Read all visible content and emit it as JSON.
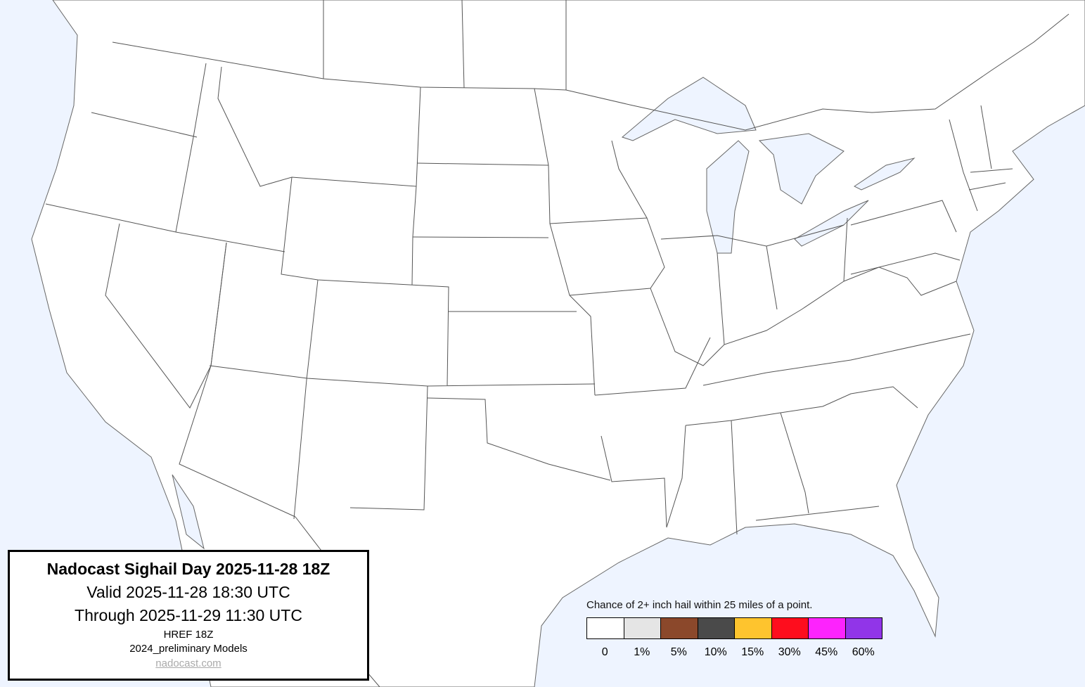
{
  "info": {
    "title": "Nadocast Sighail Day 2025-11-28 18Z",
    "valid": "Valid 2025-11-28 18:30 UTC",
    "through": "Through 2025-11-29 11:30 UTC",
    "model": "HREF 18Z",
    "models": "2024_preliminary Models",
    "link": "nadocast.com"
  },
  "legend": {
    "caption": "Chance of 2+ inch hail within 25 miles of a point.",
    "bins": [
      {
        "label": "0",
        "color": "#ffffff"
      },
      {
        "label": "1%",
        "color": "#e5e5e5"
      },
      {
        "label": "5%",
        "color": "#8b482b"
      },
      {
        "label": "10%",
        "color": "#4a4a4a"
      },
      {
        "label": "15%",
        "color": "#fec42e"
      },
      {
        "label": "30%",
        "color": "#fe0d1d"
      },
      {
        "label": "45%",
        "color": "#fd23fd"
      },
      {
        "label": "60%",
        "color": "#9135e8"
      }
    ]
  },
  "colors": {
    "water": "#eef4ff",
    "land": "#ffffff",
    "border": "#555555"
  }
}
